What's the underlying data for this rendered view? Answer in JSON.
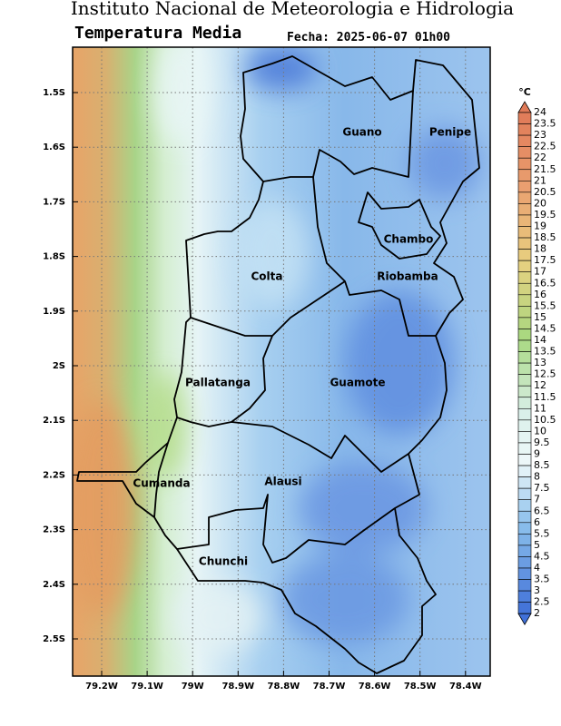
{
  "header": {
    "title": "Instituto Nacional de Meteorologia e Hidrologia",
    "subtitle": "Temperatura Media",
    "date": "Fecha: 2025-06-07 01h00"
  },
  "map": {
    "lat_labels": [
      "1.5S",
      "1.6S",
      "1.7S",
      "1.8S",
      "1.9S",
      "2S",
      "2.1S",
      "2.2S",
      "2.3S",
      "2.4S",
      "2.5S"
    ],
    "lon_labels": [
      "79.2W",
      "79.1W",
      "79W",
      "78.9W",
      "78.8W",
      "78.7W",
      "78.6W",
      "78.5W",
      "78.4W"
    ],
    "regions": [
      "Guano",
      "Penipe",
      "Chambo",
      "Colta",
      "Riobamba",
      "Pallatanga",
      "Guamote",
      "Cumanda",
      "Alausi",
      "Chunchi"
    ]
  },
  "colorbar": {
    "unit": "°C",
    "ticks": [
      24,
      23.5,
      23,
      22.5,
      22,
      21.5,
      21,
      20.5,
      20,
      19.5,
      19,
      18.5,
      18,
      17.5,
      17,
      16.5,
      16,
      15.5,
      15,
      14.5,
      14,
      13.5,
      13,
      12.5,
      12,
      11.5,
      11,
      10.5,
      10,
      9.5,
      9,
      8.5,
      8,
      7.5,
      7,
      6.5,
      6,
      5.5,
      5,
      4.5,
      4,
      3.5,
      3,
      2.5,
      2
    ]
  }
}
